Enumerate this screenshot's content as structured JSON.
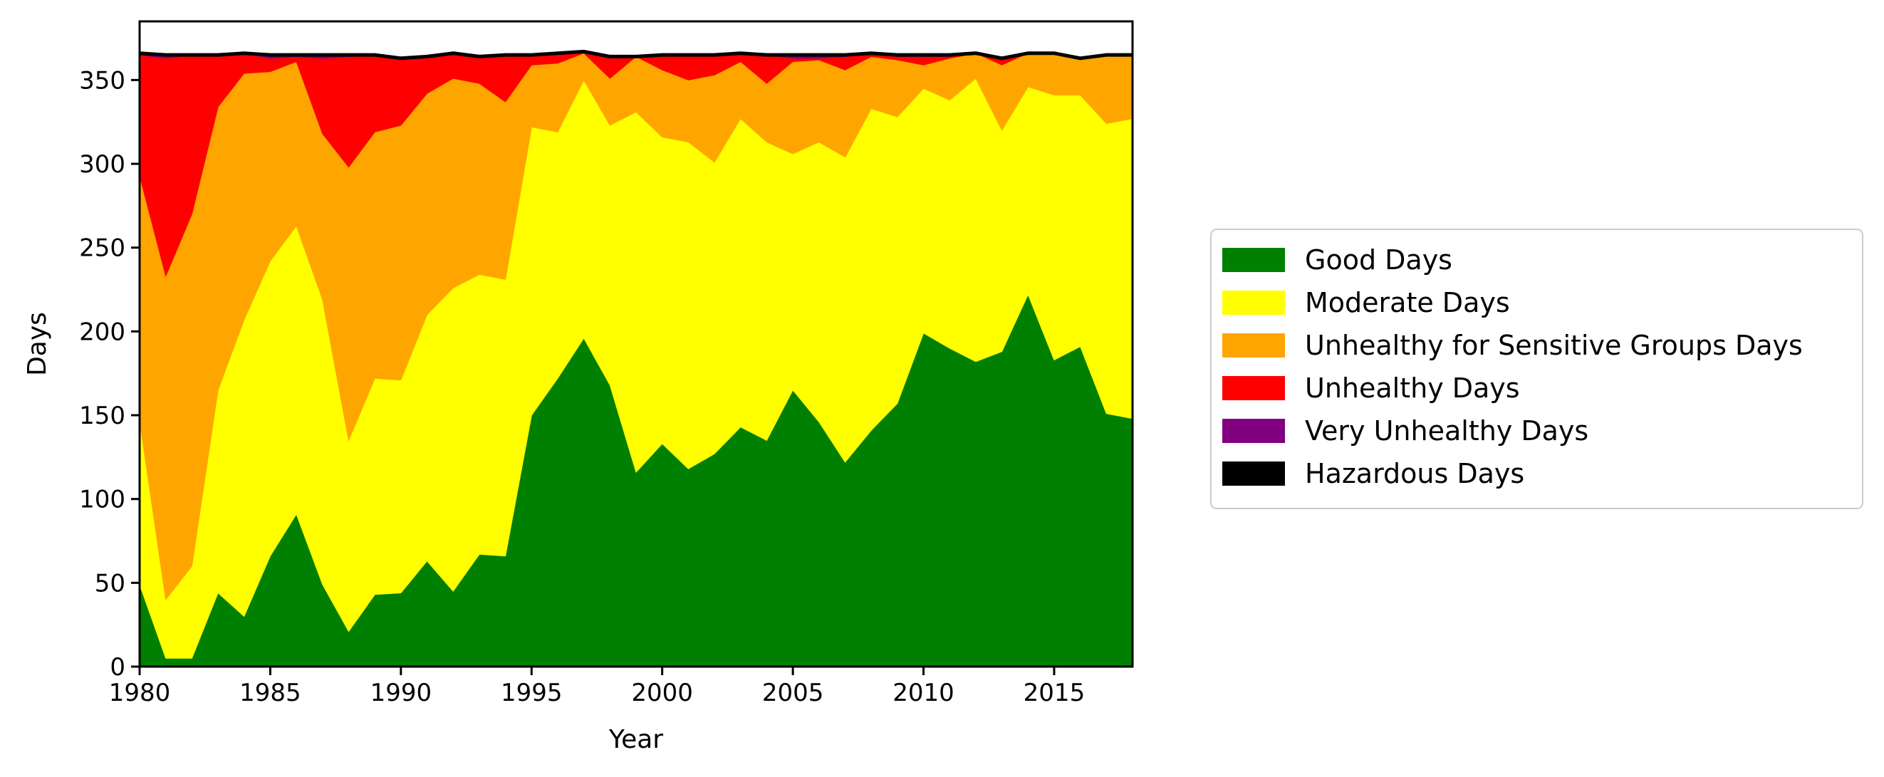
{
  "chart_data": {
    "type": "area",
    "stacked": true,
    "title": "",
    "xlabel": "Year",
    "ylabel": "Days",
    "xlim": [
      1980,
      2018
    ],
    "ylim": [
      0,
      385
    ],
    "xticks": [
      1980,
      1985,
      1990,
      1995,
      2000,
      2005,
      2010,
      2015
    ],
    "yticks": [
      0,
      50,
      100,
      150,
      200,
      250,
      300,
      350
    ],
    "grid": false,
    "legend_position": "right",
    "x": [
      1980,
      1981,
      1982,
      1983,
      1984,
      1985,
      1986,
      1987,
      1988,
      1989,
      1990,
      1991,
      1992,
      1993,
      1994,
      1995,
      1996,
      1997,
      1998,
      1999,
      2000,
      2001,
      2002,
      2003,
      2004,
      2005,
      2006,
      2007,
      2008,
      2009,
      2010,
      2011,
      2012,
      2013,
      2014,
      2015,
      2016,
      2017,
      2018
    ],
    "series": [
      {
        "name": "Good Days",
        "color": "#008000",
        "values": [
          49,
          5,
          5,
          44,
          30,
          66,
          91,
          49,
          21,
          43,
          44,
          63,
          45,
          67,
          66,
          150,
          172,
          196,
          168,
          116,
          133,
          118,
          127,
          143,
          135,
          165,
          146,
          122,
          141,
          157,
          199,
          190,
          182,
          188,
          222,
          183,
          191,
          151,
          148
        ]
      },
      {
        "name": "Moderate Days",
        "color": "#ffff00",
        "values": [
          98,
          35,
          55,
          121,
          177,
          176,
          172,
          170,
          114,
          129,
          127,
          147,
          181,
          167,
          165,
          172,
          147,
          154,
          155,
          215,
          183,
          195,
          174,
          184,
          178,
          141,
          167,
          182,
          192,
          171,
          146,
          148,
          169,
          132,
          124,
          158,
          150,
          173,
          179
        ]
      },
      {
        "name": "Unhealthy for Sensitive Groups Days",
        "color": "#ffa500",
        "values": [
          146,
          193,
          210,
          169,
          147,
          113,
          98,
          99,
          163,
          147,
          152,
          132,
          125,
          114,
          106,
          37,
          41,
          16,
          28,
          33,
          40,
          37,
          52,
          34,
          35,
          55,
          49,
          52,
          31,
          34,
          14,
          25,
          15,
          39,
          20,
          25,
          22,
          41,
          38
        ]
      },
      {
        "name": "Unhealthy Days",
        "color": "#ff0000",
        "values": [
          72,
          130,
          95,
          30,
          12,
          8,
          3,
          45,
          66,
          46,
          40,
          22,
          14,
          16,
          28,
          6,
          6,
          1,
          13,
          0,
          9,
          15,
          12,
          5,
          17,
          2,
          1,
          8,
          2,
          2,
          5,
          1,
          0,
          4,
          0,
          0,
          0,
          0,
          0
        ]
      },
      {
        "name": "Very Unhealthy Days",
        "color": "#800080",
        "values": [
          1,
          2,
          0,
          1,
          0,
          2,
          1,
          2,
          1,
          0,
          0,
          0,
          1,
          0,
          0,
          0,
          0,
          0,
          0,
          0,
          0,
          0,
          0,
          0,
          0,
          2,
          2,
          1,
          0,
          1,
          1,
          1,
          0,
          0,
          0,
          0,
          0,
          0,
          0
        ]
      },
      {
        "name": "Hazardous Days",
        "color": "#000000",
        "values": [
          0,
          0,
          0,
          0,
          0,
          0,
          0,
          0,
          0,
          0,
          0,
          0,
          0,
          0,
          0,
          0,
          0,
          0,
          0,
          0,
          0,
          0,
          0,
          0,
          0,
          0,
          0,
          0,
          0,
          0,
          0,
          0,
          0,
          0,
          0,
          0,
          0,
          0,
          0
        ]
      }
    ]
  }
}
